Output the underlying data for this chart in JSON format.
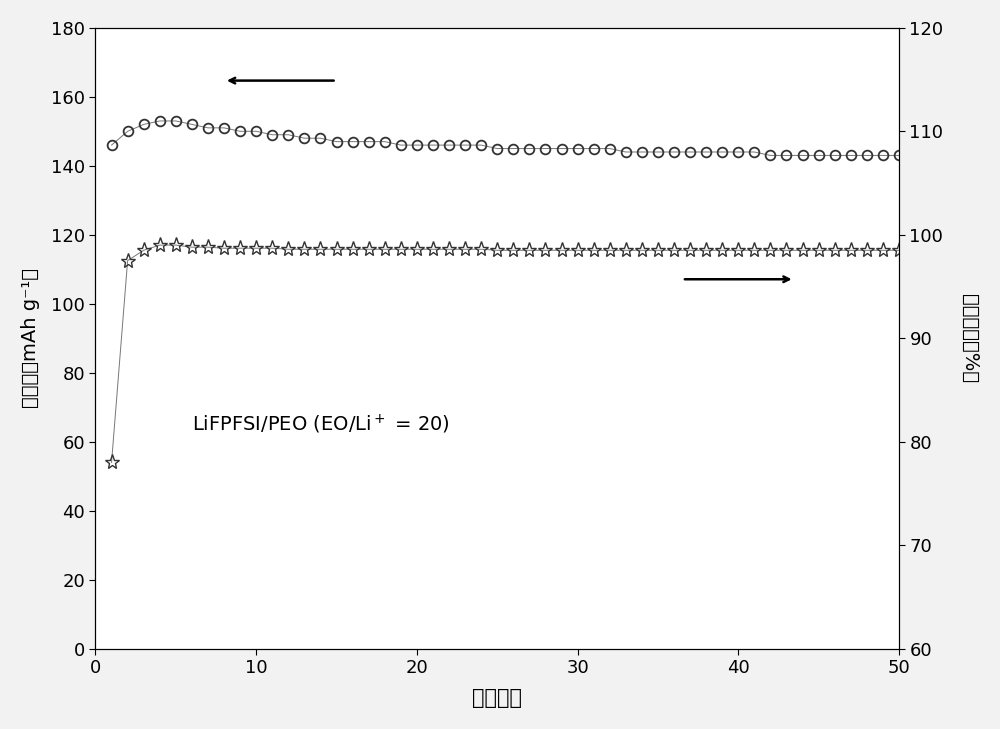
{
  "title": "",
  "xlabel": "循环次数",
  "ylabel_left": "比容量（mAh g⁻¹）",
  "ylabel_right": "库仑效率（%）",
  "annotation_text": "LiFPFSI/PEO (EO/Li",
  "annotation_superscript": "+",
  "annotation_rest": " = 20)",
  "xlim": [
    0,
    50
  ],
  "ylim_left": [
    0,
    180
  ],
  "ylim_right": [
    60,
    120
  ],
  "yticks_left": [
    0,
    20,
    40,
    60,
    80,
    100,
    120,
    140,
    160,
    180
  ],
  "yticks_right": [
    60,
    70,
    80,
    90,
    100,
    110,
    120
  ],
  "xticks": [
    0,
    10,
    20,
    30,
    40,
    50
  ],
  "background_color": "#f2f2f2",
  "plot_bg_color": "#ffffff",
  "capacity_data": {
    "cycles": [
      1,
      2,
      3,
      4,
      5,
      6,
      7,
      8,
      9,
      10,
      11,
      12,
      13,
      14,
      15,
      16,
      17,
      18,
      19,
      20,
      21,
      22,
      23,
      24,
      25,
      26,
      27,
      28,
      29,
      30,
      31,
      32,
      33,
      34,
      35,
      36,
      37,
      38,
      39,
      40,
      41,
      42,
      43,
      44,
      45,
      46,
      47,
      48,
      49,
      50
    ],
    "values": [
      146,
      150,
      152,
      153,
      153,
      152,
      151,
      151,
      150,
      150,
      149,
      149,
      148,
      148,
      147,
      147,
      147,
      147,
      146,
      146,
      146,
      146,
      146,
      146,
      145,
      145,
      145,
      145,
      145,
      145,
      145,
      145,
      144,
      144,
      144,
      144,
      144,
      144,
      144,
      144,
      144,
      143,
      143,
      143,
      143,
      143,
      143,
      143,
      143,
      143
    ]
  },
  "efficiency_data": {
    "cycles": [
      1,
      2,
      3,
      4,
      5,
      6,
      7,
      8,
      9,
      10,
      11,
      12,
      13,
      14,
      15,
      16,
      17,
      18,
      19,
      20,
      21,
      22,
      23,
      24,
      25,
      26,
      27,
      28,
      29,
      30,
      31,
      32,
      33,
      34,
      35,
      36,
      37,
      38,
      39,
      40,
      41,
      42,
      43,
      44,
      45,
      46,
      47,
      48,
      49,
      50
    ],
    "values": [
      78,
      97.5,
      98.5,
      99.0,
      99.0,
      98.8,
      98.8,
      98.7,
      98.7,
      98.7,
      98.7,
      98.6,
      98.6,
      98.6,
      98.6,
      98.6,
      98.6,
      98.6,
      98.6,
      98.6,
      98.6,
      98.6,
      98.6,
      98.6,
      98.5,
      98.5,
      98.5,
      98.5,
      98.5,
      98.5,
      98.5,
      98.5,
      98.5,
      98.5,
      98.5,
      98.5,
      98.5,
      98.5,
      98.5,
      98.5,
      98.5,
      98.5,
      98.5,
      98.5,
      98.5,
      98.5,
      98.5,
      98.5,
      98.5,
      98.5
    ]
  }
}
